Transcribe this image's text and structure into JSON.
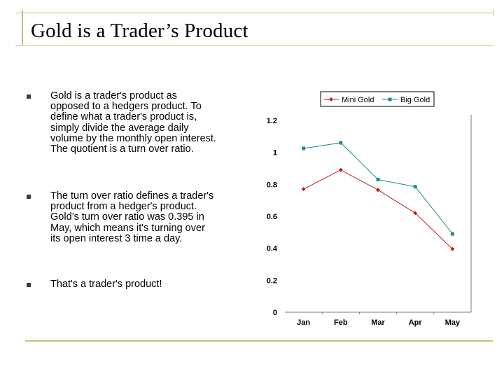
{
  "slide": {
    "title": "Gold is a Trader’s Product",
    "bullets": [
      "Gold is a trader's product as opposed to a hedgers product. To define what a trader's product is, simply divide the average daily volume by the monthly open interest. The quotient is a turn over ratio.",
      "The turn over ratio defines a trader's product from a hedger's product. Gold’s turn over ratio was 0.395 in May, which means it's turning over its open interest 3 time a day.",
      "That's a trader's product!"
    ]
  },
  "chart_data": {
    "type": "line",
    "categories": [
      "Jan",
      "Feb",
      "Mar",
      "Apr",
      "May"
    ],
    "series": [
      {
        "name": "Mini Gold",
        "values": [
          0.77,
          0.89,
          0.765,
          0.62,
          0.395
        ],
        "color": "#cc1f1f",
        "marker": "diamond"
      },
      {
        "name": "Big Gold",
        "values": [
          1.025,
          1.06,
          0.83,
          0.785,
          0.49
        ],
        "color": "#2a8a8a",
        "marker": "square"
      }
    ],
    "y_ticks": [
      "0",
      "0.2",
      "0.4",
      "0.6",
      "0.8",
      "1",
      "1.2"
    ],
    "ylim": [
      0,
      1.2
    ],
    "legend_position": "top",
    "grid": false,
    "title": "",
    "xlabel": "",
    "ylabel": ""
  }
}
